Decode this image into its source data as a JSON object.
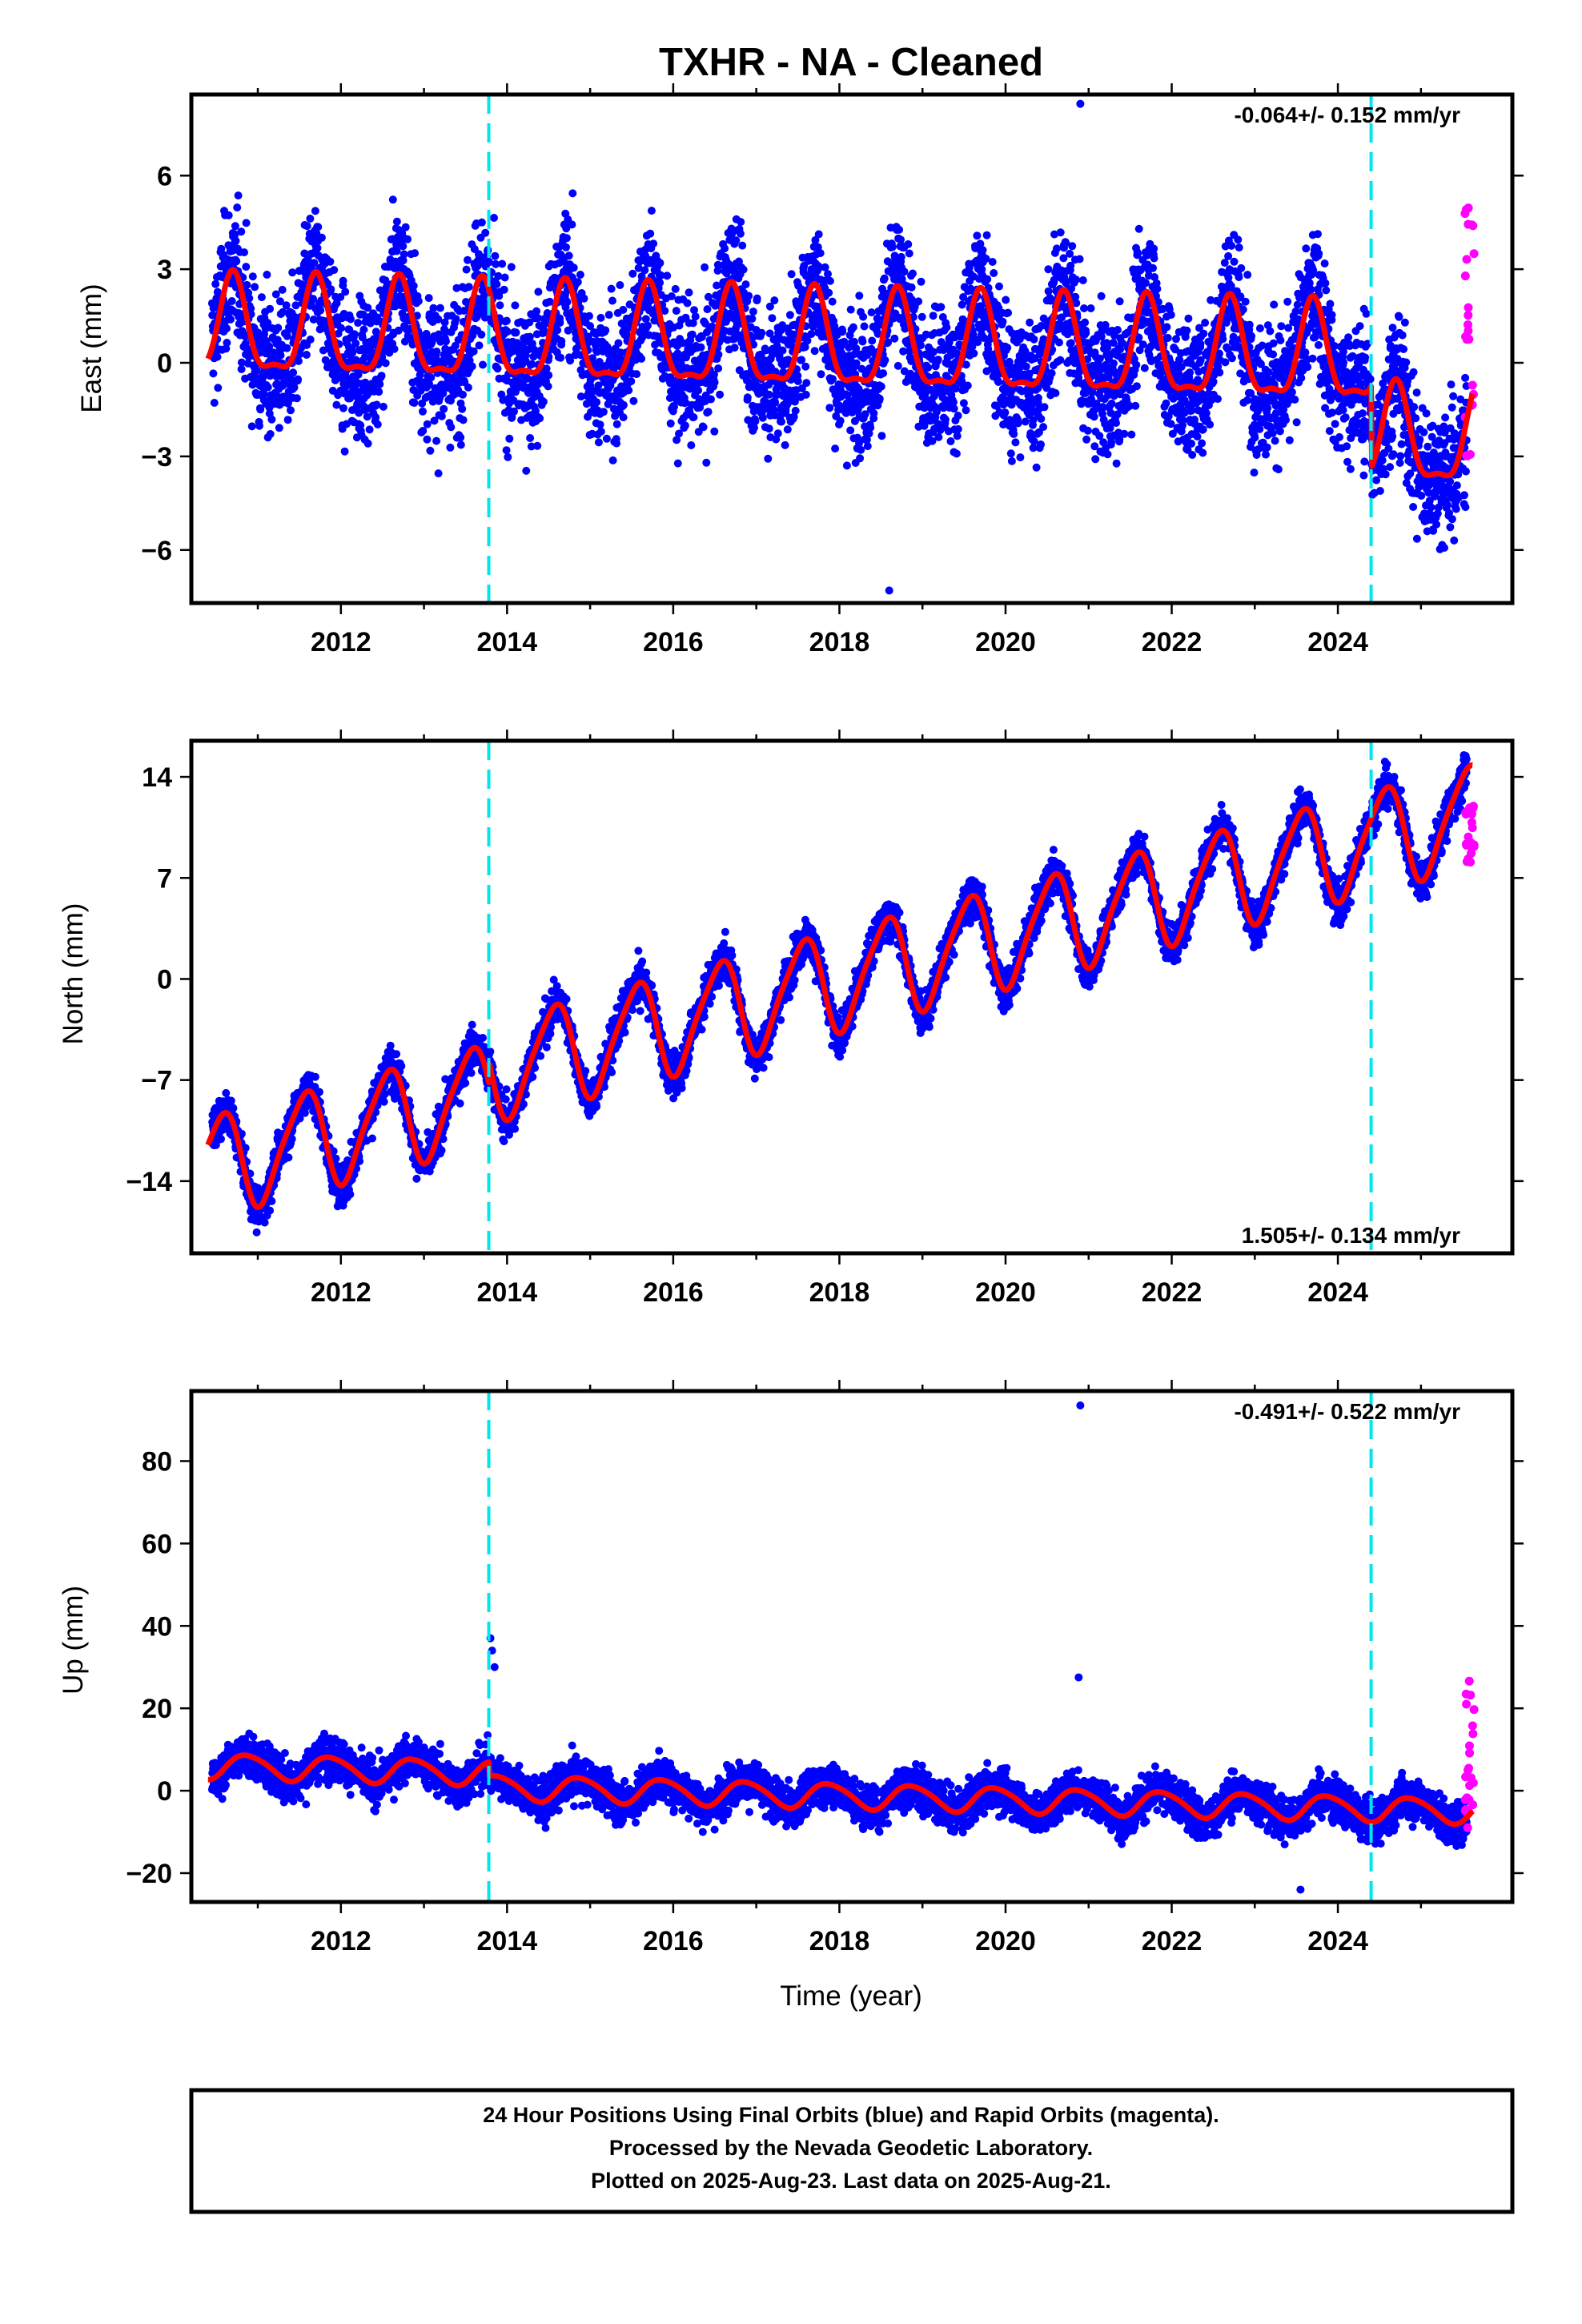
{
  "title": "TXHR  - NA - Cleaned",
  "footer": {
    "line1": "24 Hour Positions Using Final Orbits (blue) and Rapid Orbits (magenta).",
    "line2": "Processed by the Nevada Geodetic Laboratory.",
    "line3": "Plotted on 2025-Aug-23. Last data on 2025-Aug-21."
  },
  "colors": {
    "final_orbits": "#0000ff",
    "rapid_orbits": "#ff00ff",
    "model_fit": "#ff0000",
    "offset_lines": "#00e5ee",
    "frame": "#000000"
  },
  "chart_data": [
    {
      "type": "scatter",
      "name": "east",
      "ylabel": "East (mm)",
      "xlabel": "",
      "xlim": [
        2010.2,
        2026.1
      ],
      "ylim": [
        -7.7,
        8.6
      ],
      "x_ticks": [
        2012,
        2014,
        2016,
        2018,
        2020,
        2022,
        2024
      ],
      "y_ticks": [
        -6,
        -3,
        0,
        3,
        6
      ],
      "rate_label": "-0.064+/- 0.152 mm/yr",
      "rate_position": "top-right",
      "offset_epochs": [
        2013.78,
        2024.4
      ],
      "model": {
        "trend_mm_per_yr": -0.064,
        "annual_amplitude": 1.5,
        "annual_peak_phase": 0.7,
        "semiannual_amplitude": 0.5,
        "offset_at_2024.4": -2.6,
        "start_value": 1.0
      },
      "scatter_sd": 1.5,
      "outliers": [
        [
          2020.9,
          8.3
        ],
        [
          2018.6,
          -7.3
        ]
      ],
      "rapid_orbits": {
        "x_start": 2025.53,
        "x_end": 2025.64,
        "range": [
          -3,
          5
        ]
      }
    },
    {
      "type": "scatter",
      "name": "north",
      "ylabel": "North (mm)",
      "xlabel": "",
      "xlim": [
        2010.2,
        2026.1
      ],
      "ylim": [
        -19,
        16.5
      ],
      "x_ticks": [
        2012,
        2014,
        2016,
        2018,
        2020,
        2022,
        2024
      ],
      "y_ticks": [
        -14,
        -7,
        0,
        7,
        14
      ],
      "rate_label": "1.505+/- 0.134 mm/yr",
      "rate_position": "bottom-right",
      "offset_epochs": [
        2013.78,
        2024.4
      ],
      "model": {
        "trend_mm_per_yr": 1.505,
        "annual_amplitude": 3.4,
        "annual_peak_phase": 0.55,
        "semiannual_amplitude": 0.6,
        "offset_at_2013.78": 1.5,
        "start_value": -13
      },
      "scatter_sd": 1.0,
      "outliers": [],
      "rapid_orbits": {
        "x_start": 2025.53,
        "x_end": 2025.64,
        "range": [
          8,
          12
        ]
      }
    },
    {
      "type": "scatter",
      "name": "up",
      "ylabel": "Up (mm)",
      "xlabel": "Time (year)",
      "xlim": [
        2010.2,
        2026.1
      ],
      "ylim": [
        -27,
        97
      ],
      "x_ticks": [
        2012,
        2014,
        2016,
        2018,
        2020,
        2022,
        2024
      ],
      "y_ticks": [
        -20,
        0,
        20,
        40,
        60,
        80
      ],
      "rate_label": "-0.491+/- 0.522 mm/yr",
      "rate_position": "top-right",
      "offset_epochs": [
        2013.78,
        2024.4
      ],
      "model": {
        "trend_mm_per_yr": -0.491,
        "annual_amplitude": 3.0,
        "annual_peak_phase": 0.88,
        "semiannual_amplitude": 0.4,
        "offset_at_2013.78": -3.5,
        "start_value": 6
      },
      "scatter_sd": 3.5,
      "outliers": [
        [
          2013.8,
          37
        ],
        [
          2013.82,
          34
        ],
        [
          2013.85,
          30
        ],
        [
          2020.9,
          93.5
        ],
        [
          2020.88,
          27.5
        ],
        [
          2023.55,
          -24
        ]
      ],
      "rapid_orbits": {
        "x_start": 2025.53,
        "x_end": 2025.64,
        "range": [
          -9,
          27
        ]
      }
    }
  ]
}
